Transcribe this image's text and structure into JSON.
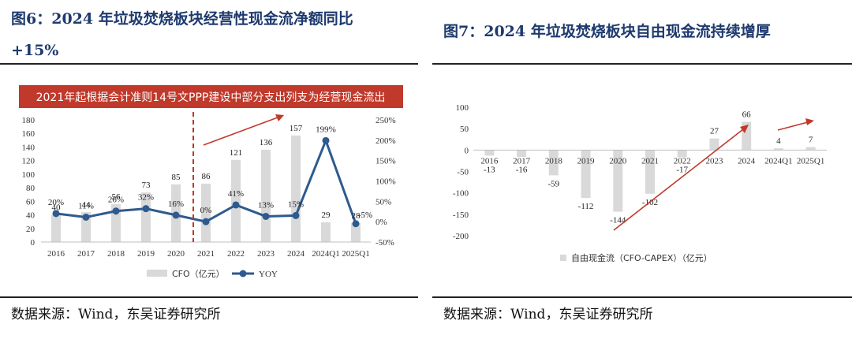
{
  "left": {
    "title_line1": "图6：2024 年垃圾焚烧板块经营性现金流净额同比",
    "title_line2": "+15%",
    "banner": "2021年起根据会计准则14号文PPP建设中部分支出列支为经营现金流出",
    "source": "数据来源：Wind，东吴证券研究所"
  },
  "right": {
    "title": "图7：2024 年垃圾焚烧板块自由现金流持续增厚",
    "source": "数据来源：Wind，东吴证券研究所"
  },
  "colors": {
    "bar": "#d9d9d9",
    "line": "#2e5a8f",
    "accent": "#c0392b",
    "title": "#1e3a6e"
  },
  "chart_data": [
    {
      "type": "bar",
      "categories": [
        "2016",
        "2017",
        "2018",
        "2019",
        "2020",
        "2021",
        "2022",
        "2023",
        "2024",
        "2024Q1",
        "2025Q1"
      ],
      "series": [
        {
          "name": "CFO（亿元）",
          "type": "bar",
          "axis": "left",
          "values": [
            40,
            44,
            56,
            73,
            85,
            86,
            121,
            136,
            157,
            29,
            28
          ]
        },
        {
          "name": "YOY",
          "type": "line",
          "axis": "right",
          "values": [
            20,
            11,
            26,
            32,
            16,
            0,
            41,
            13,
            15,
            199,
            -5
          ],
          "labels": [
            "20%",
            "11%",
            "26%",
            "32%",
            "16%",
            "0%",
            "41%",
            "13%",
            "15%",
            "199%",
            "-5%"
          ]
        }
      ],
      "ylim_left": [
        0,
        180
      ],
      "yticks_left": [
        "0",
        "20",
        "40",
        "60",
        "80",
        "100",
        "120",
        "140",
        "160",
        "180"
      ],
      "ylim_right": [
        -50,
        250
      ],
      "yticks_right": [
        "-50%",
        "0%",
        "50%",
        "100%",
        "150%",
        "200%",
        "250%"
      ],
      "legend": [
        "CFO（亿元）",
        "YOY"
      ],
      "legend_position": "bottom"
    },
    {
      "type": "bar",
      "categories": [
        "2016",
        "2017",
        "2018",
        "2019",
        "2020",
        "2021",
        "2022",
        "2023",
        "2024",
        "2024Q1",
        "2025Q1"
      ],
      "series": [
        {
          "name": "自由现金流（CFO-CAPEX）（亿元）",
          "values": [
            -13,
            -16,
            -59,
            -112,
            -144,
            -102,
            -17,
            27,
            66,
            4,
            7
          ]
        }
      ],
      "ylim": [
        -200,
        100
      ],
      "yticks": [
        "-200",
        "-150",
        "-100",
        "-50",
        "0",
        "50",
        "100"
      ],
      "legend": [
        "自由现金流（CFO-CAPEX）（亿元）"
      ],
      "legend_position": "bottom"
    }
  ]
}
